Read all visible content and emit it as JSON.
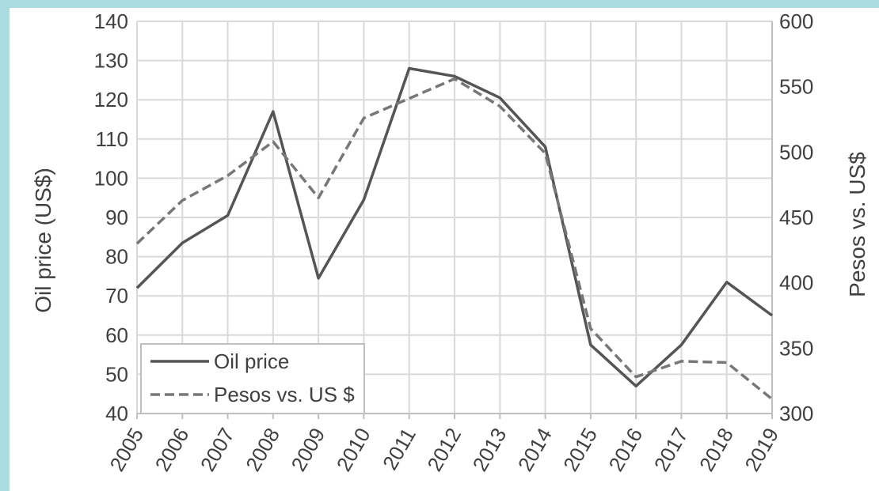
{
  "chart_data": {
    "type": "line",
    "title": "",
    "x": [
      "2005",
      "2006",
      "2007",
      "2008",
      "2009",
      "2010",
      "2011",
      "2012",
      "2013",
      "2014",
      "2015",
      "2016",
      "2017",
      "2018",
      "2019"
    ],
    "ylabel": "Oil price (US$)",
    "ylabel_right": "Pesos vs. US$",
    "ylim": [
      40,
      140
    ],
    "ylim_right": [
      300,
      600
    ],
    "yticks": [
      140,
      130,
      120,
      110,
      100,
      90,
      80,
      70,
      60,
      50,
      40
    ],
    "yticks_right": [
      600,
      550,
      500,
      450,
      400,
      350,
      300
    ],
    "grid": true,
    "legend_position": "bottom-left",
    "series": [
      {
        "name": "Oil price",
        "axis": "left",
        "style": "solid",
        "color": "#555555",
        "values": [
          72,
          83.5,
          90.5,
          117,
          74.5,
          94.5,
          128,
          126,
          120.5,
          108,
          57.5,
          47,
          57.5,
          73.5,
          65
        ]
      },
      {
        "name": "Pesos vs. US $",
        "axis": "right",
        "style": "dashed",
        "color": "#777777",
        "values": [
          430,
          463,
          482,
          508,
          465,
          526,
          541,
          556,
          535,
          499,
          365,
          328,
          340,
          339,
          311
        ]
      }
    ]
  }
}
